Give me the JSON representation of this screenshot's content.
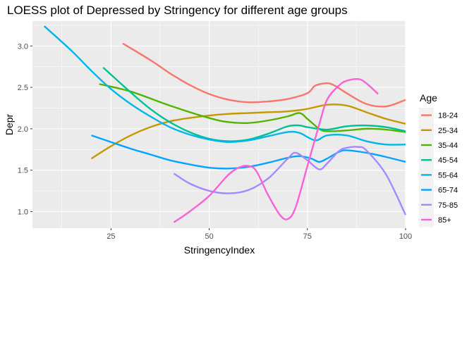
{
  "chart_data": {
    "type": "line",
    "title": "LOESS plot of Depressed by Stringency for different age groups",
    "xlabel": "StringencyIndex",
    "ylabel": "Depr",
    "xlim": [
      5,
      100
    ],
    "ylim": [
      0.8,
      3.3
    ],
    "x_ticks": [
      25,
      50,
      75,
      100
    ],
    "y_ticks": [
      1.0,
      1.5,
      2.0,
      2.5,
      3.0
    ],
    "x_tick_labels": [
      "25",
      "50",
      "75",
      "100"
    ],
    "y_tick_labels": [
      "1.0",
      "1.5",
      "2.0",
      "2.5",
      "3.0"
    ],
    "grid": true,
    "legend": {
      "title": "Age",
      "position": "right"
    },
    "series": [
      {
        "name": "18-24",
        "color": "#F8766D",
        "x": [
          28,
          35,
          40,
          45,
          50,
          55,
          60,
          65,
          70,
          75,
          77,
          80,
          82,
          85,
          90,
          95,
          100
        ],
        "y": [
          3.03,
          2.83,
          2.67,
          2.53,
          2.42,
          2.35,
          2.32,
          2.33,
          2.36,
          2.43,
          2.52,
          2.55,
          2.52,
          2.43,
          2.3,
          2.27,
          2.35
        ]
      },
      {
        "name": "25-34",
        "color": "#C49A00",
        "x": [
          20,
          25,
          30,
          35,
          40,
          45,
          50,
          55,
          60,
          65,
          70,
          75,
          80,
          85,
          90,
          95,
          100
        ],
        "y": [
          1.64,
          1.79,
          1.92,
          2.02,
          2.09,
          2.13,
          2.16,
          2.18,
          2.19,
          2.2,
          2.21,
          2.24,
          2.29,
          2.28,
          2.2,
          2.12,
          2.06
        ]
      },
      {
        "name": "35-44",
        "color": "#53B400",
        "x": [
          22,
          30,
          40,
          50,
          55,
          60,
          65,
          70,
          73,
          75,
          78,
          80,
          85,
          90,
          95,
          100
        ],
        "y": [
          2.54,
          2.45,
          2.28,
          2.13,
          2.08,
          2.07,
          2.1,
          2.15,
          2.19,
          2.12,
          2.0,
          1.97,
          1.98,
          2.0,
          1.99,
          1.96
        ]
      },
      {
        "name": "45-54",
        "color": "#00C094",
        "x": [
          23,
          30,
          35,
          40,
          45,
          50,
          55,
          60,
          65,
          70,
          73,
          75,
          80,
          85,
          90,
          95,
          100
        ],
        "y": [
          2.74,
          2.44,
          2.24,
          2.08,
          1.96,
          1.88,
          1.85,
          1.87,
          1.94,
          2.03,
          2.04,
          2.02,
          1.99,
          2.03,
          2.04,
          2.02,
          1.97
        ]
      },
      {
        "name": "55-64",
        "color": "#00B6EB",
        "x": [
          8,
          15,
          20,
          25,
          30,
          35,
          40,
          45,
          50,
          55,
          60,
          65,
          70,
          73,
          77,
          80,
          85,
          90,
          95,
          100
        ],
        "y": [
          3.24,
          2.94,
          2.7,
          2.48,
          2.3,
          2.15,
          2.02,
          1.93,
          1.87,
          1.84,
          1.86,
          1.91,
          1.96,
          1.95,
          1.86,
          1.92,
          1.92,
          1.85,
          1.81,
          1.81
        ]
      },
      {
        "name": "65-74",
        "color": "#06A4FF",
        "x": [
          20,
          25,
          30,
          35,
          40,
          45,
          50,
          55,
          60,
          65,
          70,
          73,
          76,
          78,
          80,
          83,
          85,
          90,
          95,
          100
        ],
        "y": [
          1.92,
          1.84,
          1.76,
          1.69,
          1.62,
          1.57,
          1.53,
          1.52,
          1.54,
          1.59,
          1.65,
          1.67,
          1.64,
          1.6,
          1.64,
          1.72,
          1.74,
          1.71,
          1.66,
          1.6
        ]
      },
      {
        "name": "75-85",
        "color": "#A58AFF",
        "x": [
          41,
          45,
          50,
          55,
          60,
          65,
          70,
          72,
          75,
          78,
          80,
          83,
          85,
          88,
          90,
          95,
          100
        ],
        "y": [
          1.46,
          1.34,
          1.25,
          1.22,
          1.26,
          1.4,
          1.64,
          1.71,
          1.62,
          1.51,
          1.58,
          1.73,
          1.77,
          1.78,
          1.74,
          1.45,
          0.96
        ]
      },
      {
        "name": "85+",
        "color": "#FB61D7",
        "x": [
          41,
          45,
          50,
          55,
          58,
          60,
          62,
          65,
          68,
          70,
          72,
          75,
          78,
          80,
          83,
          85,
          88,
          90,
          93
        ],
        "y": [
          0.87,
          1.0,
          1.19,
          1.45,
          1.54,
          1.55,
          1.49,
          1.2,
          0.96,
          0.91,
          1.05,
          1.55,
          2.05,
          2.35,
          2.52,
          2.58,
          2.6,
          2.55,
          2.42
        ]
      }
    ]
  }
}
